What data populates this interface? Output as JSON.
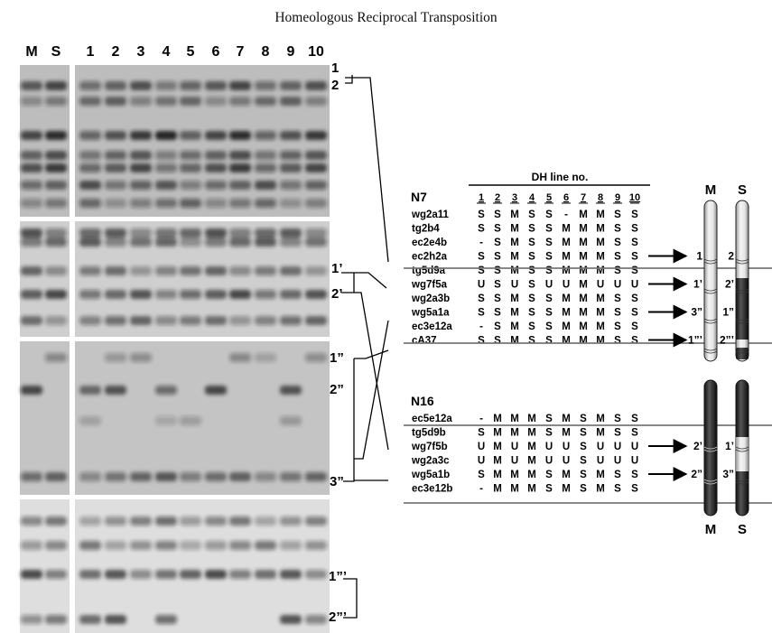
{
  "page": {
    "title": "Homeologous Reciprocal Transposition"
  },
  "gel": {
    "lanes": [
      "M",
      "S",
      "1",
      "2",
      "3",
      "4",
      "5",
      "6",
      "7",
      "8",
      "9",
      "10"
    ],
    "band_labels": [
      "1",
      "2",
      "1’",
      "2’",
      "1”",
      "2”",
      "3”",
      "1”’",
      "2”’"
    ]
  },
  "table": {
    "header": "DH line no.",
    "columns": [
      "1",
      "2",
      "3",
      "4",
      "5",
      "6",
      "7",
      "8",
      "9",
      "10"
    ],
    "groups": [
      {
        "name": "N7",
        "rows": [
          {
            "marker": "wg2a11",
            "calls": [
              "S",
              "S",
              "M",
              "S",
              "S",
              "-",
              "M",
              "M",
              "S",
              "S"
            ]
          },
          {
            "marker": "tg2b4",
            "calls": [
              "S",
              "S",
              "M",
              "S",
              "S",
              "M",
              "M",
              "M",
              "S",
              "S"
            ]
          },
          {
            "marker": "ec2e4b",
            "calls": [
              "-",
              "S",
              "M",
              "S",
              "S",
              "M",
              "M",
              "M",
              "S",
              "S"
            ]
          },
          {
            "marker": "ec2h2a",
            "calls": [
              "S",
              "S",
              "M",
              "S",
              "S",
              "M",
              "M",
              "M",
              "S",
              "S"
            ]
          },
          {
            "marker": "tg5d9a",
            "calls": [
              "S",
              "S",
              "M",
              "S",
              "S",
              "M",
              "M",
              "M",
              "S",
              "S"
            ]
          },
          {
            "marker": "wg7f5a",
            "calls": [
              "U",
              "S",
              "U",
              "S",
              "U",
              "U",
              "M",
              "U",
              "U",
              "U"
            ]
          },
          {
            "marker": "wg2a3b",
            "calls": [
              "S",
              "S",
              "M",
              "S",
              "S",
              "M",
              "M",
              "M",
              "S",
              "S"
            ]
          },
          {
            "marker": "wg5a1a",
            "calls": [
              "S",
              "S",
              "M",
              "S",
              "S",
              "M",
              "M",
              "M",
              "S",
              "S"
            ]
          },
          {
            "marker": "ec3e12a",
            "calls": [
              "-",
              "S",
              "M",
              "S",
              "S",
              "M",
              "M",
              "M",
              "S",
              "S"
            ]
          },
          {
            "marker": "cA37",
            "calls": [
              "S",
              "S",
              "M",
              "S",
              "S",
              "M",
              "M",
              "M",
              "S",
              "S"
            ]
          }
        ]
      },
      {
        "name": "N16",
        "rows": [
          {
            "marker": "ec5e12a",
            "calls": [
              "-",
              "M",
              "M",
              "M",
              "S",
              "M",
              "S",
              "M",
              "S",
              "S"
            ]
          },
          {
            "marker": "tg5d9b",
            "calls": [
              "S",
              "M",
              "M",
              "M",
              "S",
              "M",
              "S",
              "M",
              "S",
              "S"
            ]
          },
          {
            "marker": "wg7f5b",
            "calls": [
              "U",
              "M",
              "U",
              "M",
              "U",
              "U",
              "S",
              "U",
              "U",
              "U"
            ]
          },
          {
            "marker": "wg2a3c",
            "calls": [
              "U",
              "M",
              "U",
              "M",
              "U",
              "U",
              "S",
              "U",
              "U",
              "U"
            ]
          },
          {
            "marker": "wg5a1b",
            "calls": [
              "S",
              "M",
              "M",
              "M",
              "S",
              "M",
              "S",
              "M",
              "S",
              "S"
            ]
          },
          {
            "marker": "ec3e12b",
            "calls": [
              "-",
              "M",
              "M",
              "M",
              "S",
              "M",
              "S",
              "M",
              "S",
              "S"
            ]
          }
        ]
      }
    ]
  },
  "chromosomes": {
    "top_labels": [
      "M",
      "S"
    ],
    "bottom_labels": [
      "M",
      "S"
    ],
    "n7_locus_labels": [
      {
        "m": "1",
        "s": "2"
      },
      {
        "m": "1’",
        "s": "2’"
      },
      {
        "m": "3”",
        "s": "1”"
      },
      {
        "m": "1”’",
        "s": "2”’"
      }
    ],
    "n16_locus_labels": [
      {
        "m": "2’",
        "s": "1’"
      },
      {
        "m": "2”",
        "s": "3”"
      }
    ]
  }
}
